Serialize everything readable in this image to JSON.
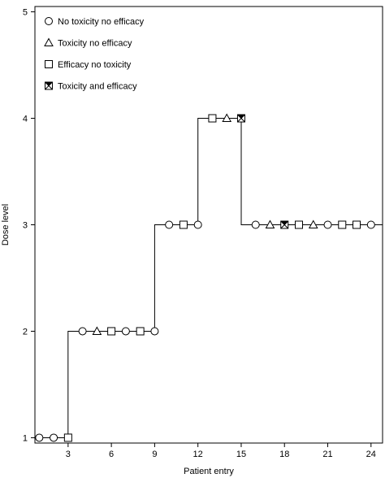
{
  "chart_data": {
    "type": "scatter",
    "title": "",
    "xlabel": "Patient entry",
    "ylabel": "Dose level",
    "xlim": [
      0.7,
      24.8
    ],
    "ylim": [
      0.95,
      5.05
    ],
    "xticks": [
      3,
      6,
      9,
      12,
      15,
      18,
      21,
      24
    ],
    "yticks": [
      1,
      2,
      3,
      4,
      5
    ],
    "grid": false,
    "legend_position": "top-left",
    "legend": [
      {
        "marker": "circle",
        "label": "No toxicity no efficacy"
      },
      {
        "marker": "triangle",
        "label": "Toxicity no efficacy"
      },
      {
        "marker": "square",
        "label": "Efficacy no toxicity"
      },
      {
        "marker": "square-x",
        "label": "Toxicity and efficacy"
      }
    ],
    "points": [
      {
        "x": 1,
        "y": 1,
        "marker": "circle"
      },
      {
        "x": 2,
        "y": 1,
        "marker": "circle"
      },
      {
        "x": 3,
        "y": 1,
        "marker": "square"
      },
      {
        "x": 4,
        "y": 2,
        "marker": "circle"
      },
      {
        "x": 5,
        "y": 2,
        "marker": "triangle"
      },
      {
        "x": 6,
        "y": 2,
        "marker": "square"
      },
      {
        "x": 7,
        "y": 2,
        "marker": "circle"
      },
      {
        "x": 8,
        "y": 2,
        "marker": "square"
      },
      {
        "x": 9,
        "y": 2,
        "marker": "circle"
      },
      {
        "x": 10,
        "y": 3,
        "marker": "circle"
      },
      {
        "x": 11,
        "y": 3,
        "marker": "square"
      },
      {
        "x": 12,
        "y": 3,
        "marker": "circle"
      },
      {
        "x": 13,
        "y": 4,
        "marker": "square"
      },
      {
        "x": 14,
        "y": 4,
        "marker": "triangle"
      },
      {
        "x": 15,
        "y": 4,
        "marker": "square-x"
      },
      {
        "x": 16,
        "y": 3,
        "marker": "circle"
      },
      {
        "x": 17,
        "y": 3,
        "marker": "triangle"
      },
      {
        "x": 18,
        "y": 3,
        "marker": "square-x"
      },
      {
        "x": 19,
        "y": 3,
        "marker": "square"
      },
      {
        "x": 20,
        "y": 3,
        "marker": "triangle"
      },
      {
        "x": 21,
        "y": 3,
        "marker": "circle"
      },
      {
        "x": 22,
        "y": 3,
        "marker": "square"
      },
      {
        "x": 23,
        "y": 3,
        "marker": "square"
      },
      {
        "x": 24,
        "y": 3,
        "marker": "circle"
      }
    ],
    "step_line": [
      [
        0.7,
        1
      ],
      [
        3,
        1
      ],
      [
        3,
        2
      ],
      [
        9,
        2
      ],
      [
        9,
        3
      ],
      [
        12,
        3
      ],
      [
        12,
        4
      ],
      [
        15,
        4
      ],
      [
        15,
        3
      ],
      [
        24.8,
        3
      ]
    ]
  }
}
